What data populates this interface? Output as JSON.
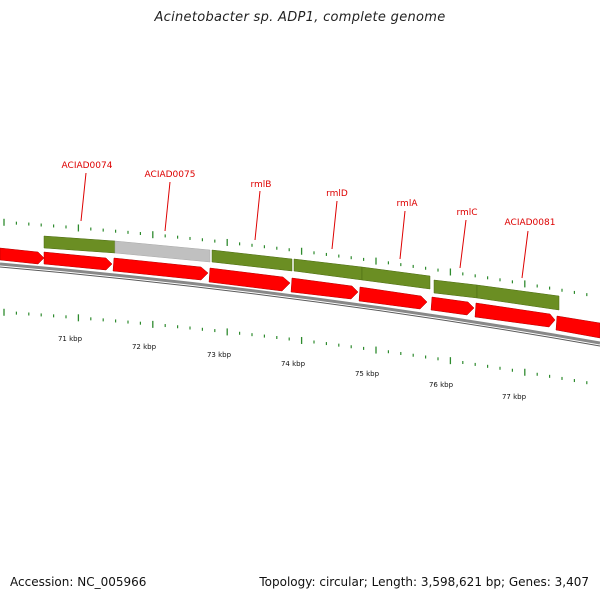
{
  "title": "Acinetobacter sp. ADP1, complete genome",
  "footer": {
    "accession": "Accession: NC_005966",
    "stats": "Topology: circular; Length: 3,598,621 bp; Genes: 3,407"
  },
  "colors": {
    "gene_label": "#dd0000",
    "cds_forward": "#ff0000",
    "gene_green": "#6b8e23",
    "gene_grey": "#c0c0c0",
    "tick_green": "#2e8b2e",
    "backbone": "#888888"
  },
  "genes": [
    {
      "label": "ACIAD0074"
    },
    {
      "label": "ACIAD0075"
    },
    {
      "label": "rmlB"
    },
    {
      "label": "rmlD"
    },
    {
      "label": "rmlA"
    },
    {
      "label": "rmlC"
    },
    {
      "label": "ACIAD0081"
    }
  ],
  "kbp_ticks": [
    {
      "label": "71 kbp"
    },
    {
      "label": "72 kbp"
    },
    {
      "label": "73 kbp"
    },
    {
      "label": "74 kbp"
    },
    {
      "label": "75 kbp"
    },
    {
      "label": "76 kbp"
    },
    {
      "label": "77 kbp"
    }
  ]
}
